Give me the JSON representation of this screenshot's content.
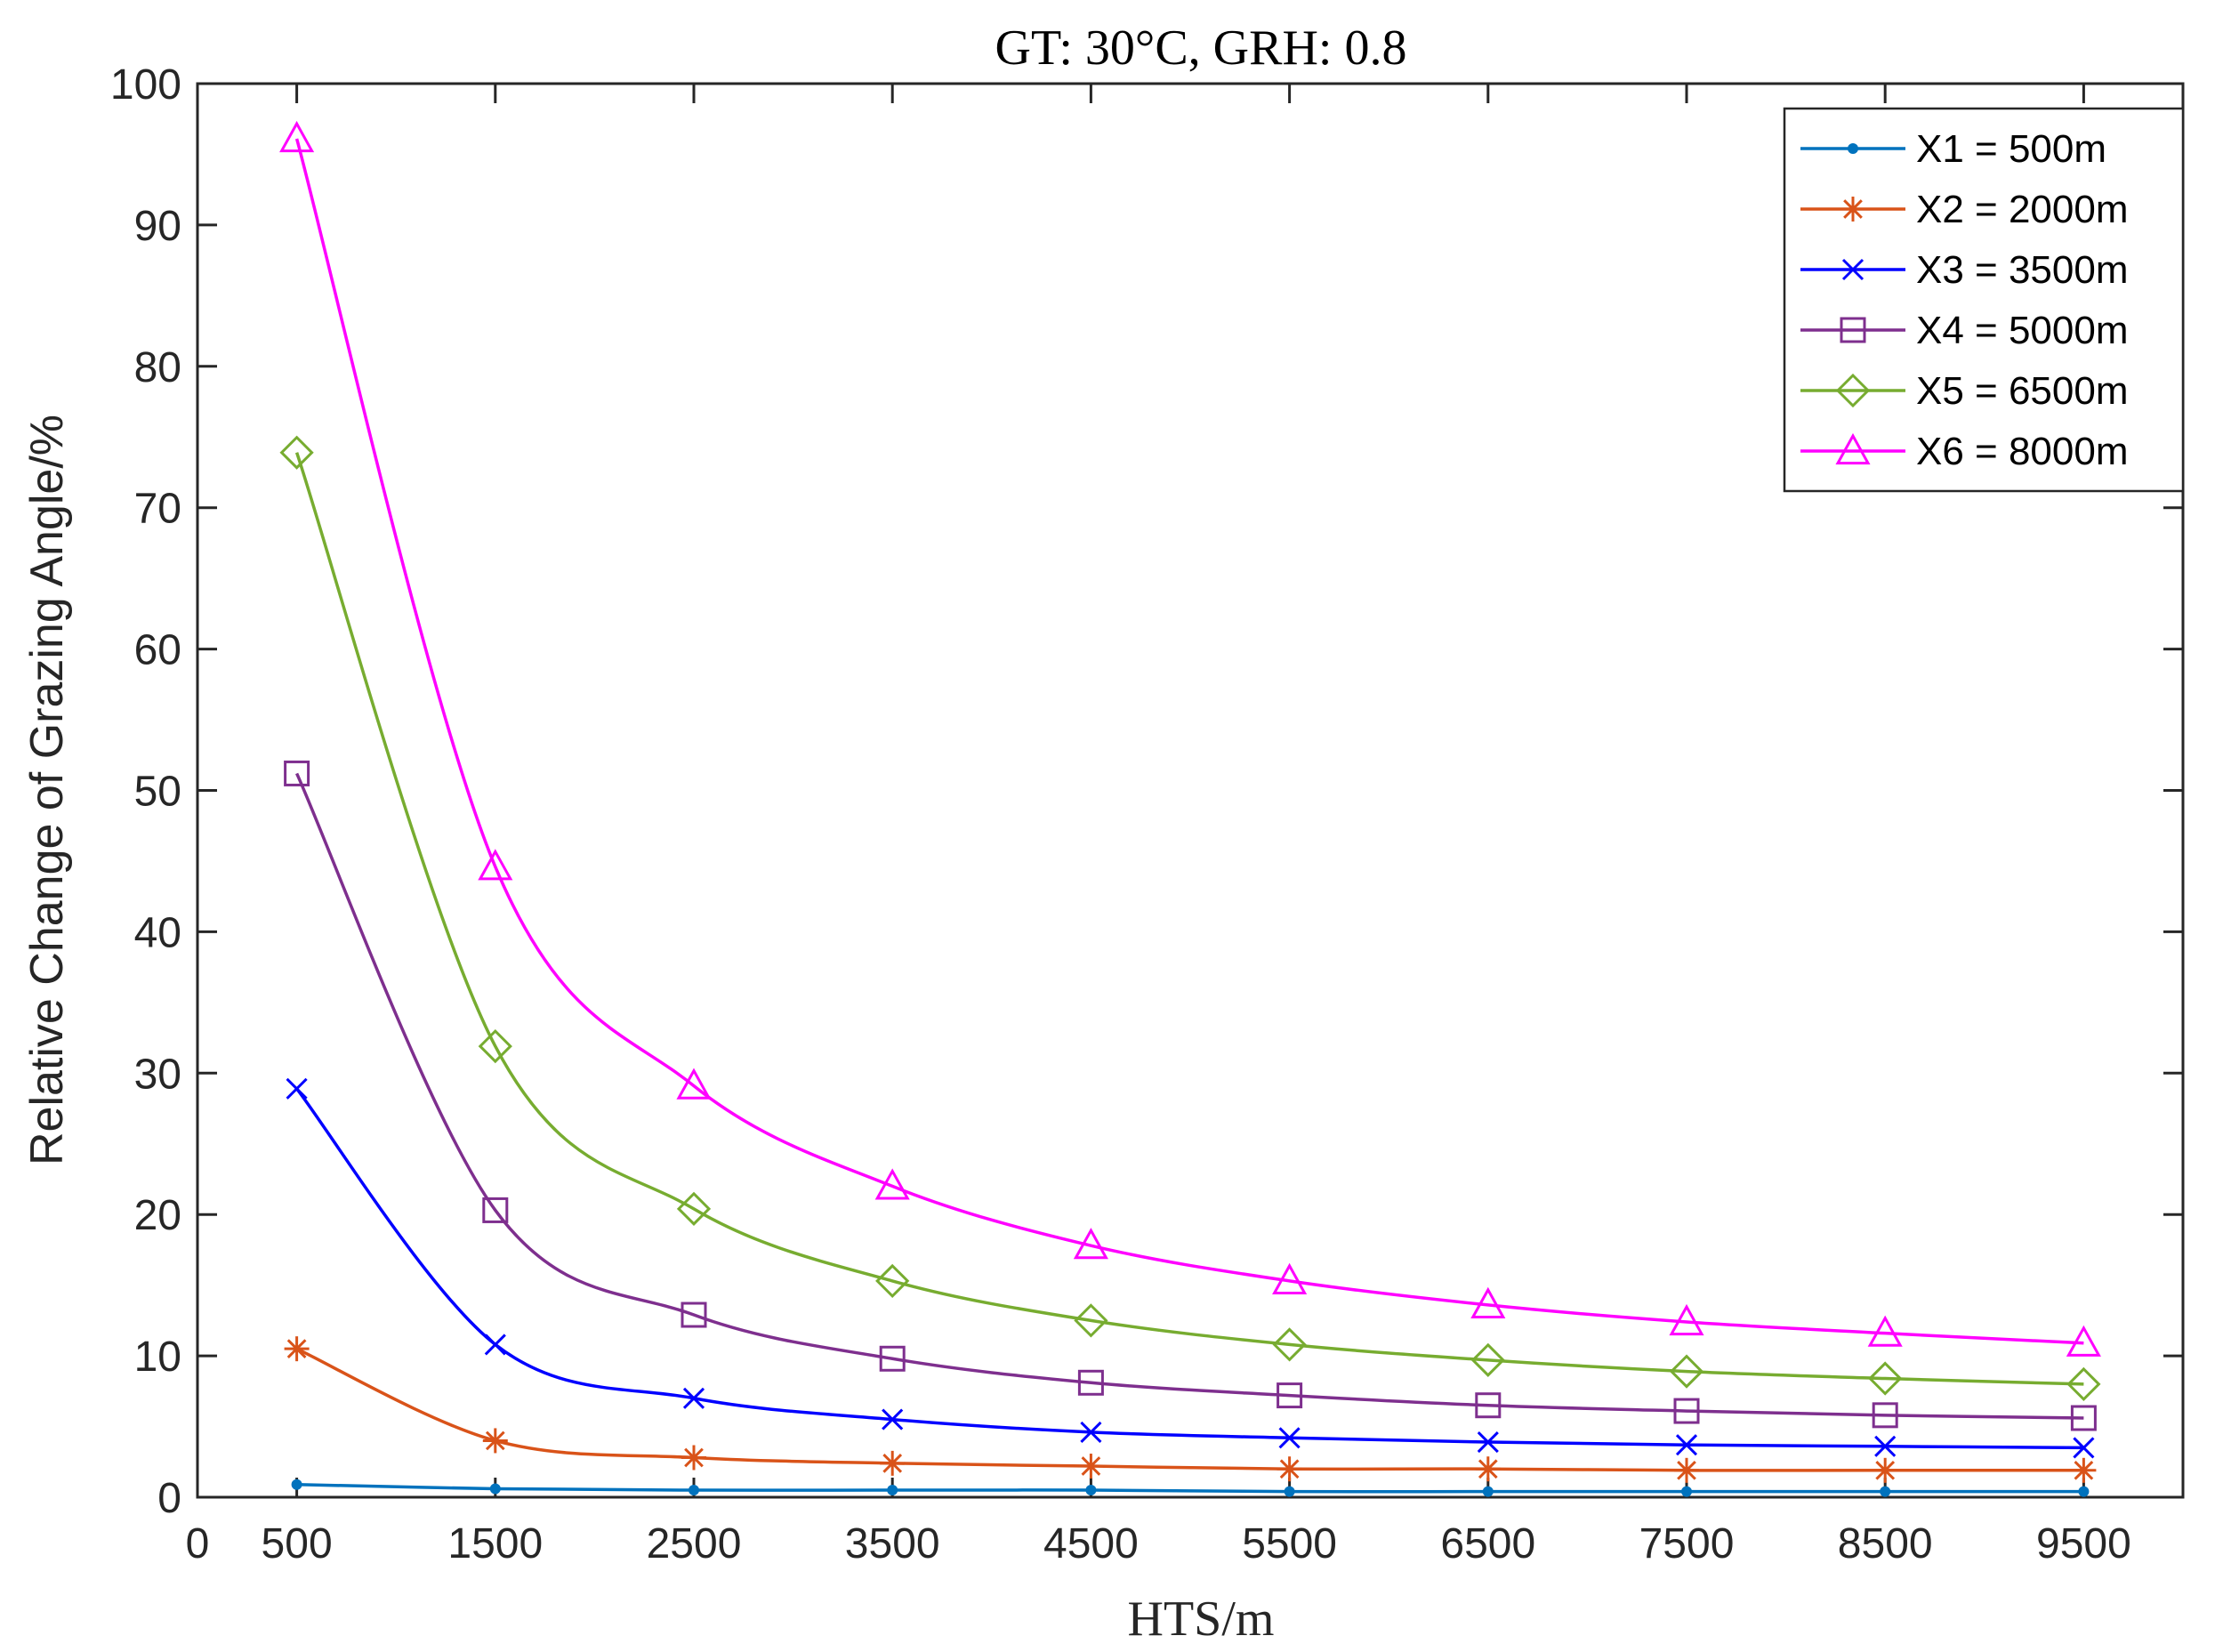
{
  "chart_data": {
    "type": "line",
    "title": "GT: 30°C, GRH: 0.8",
    "xlabel": "HTS/m",
    "ylabel": "Relative Change of Grazing Angle/%",
    "xlim": [
      0,
      10000
    ],
    "ylim": [
      0,
      100
    ],
    "x_ticks": [
      0,
      500,
      1500,
      2500,
      3500,
      4500,
      5500,
      6500,
      7500,
      8500,
      9500
    ],
    "y_ticks": [
      0,
      10,
      20,
      30,
      40,
      50,
      60,
      70,
      80,
      90,
      100
    ],
    "grid": false,
    "legend_position": "top-right",
    "x": [
      500,
      1500,
      2500,
      3500,
      4500,
      5500,
      6500,
      7500,
      8500,
      9500
    ],
    "series": [
      {
        "name": "X1 = 500m",
        "color": "#0072BD",
        "marker": "dot",
        "values": [
          0.9,
          0.6,
          0.5,
          0.5,
          0.5,
          0.4,
          0.4,
          0.4,
          0.4,
          0.4
        ]
      },
      {
        "name": "X2 = 2000m",
        "color": "#D95319",
        "marker": "asterisk",
        "values": [
          10.5,
          4.0,
          2.8,
          2.4,
          2.2,
          2.0,
          2.0,
          1.9,
          1.9,
          1.9
        ]
      },
      {
        "name": "X3 = 3500m",
        "color": "#0000FF",
        "marker": "x",
        "values": [
          28.9,
          10.8,
          7.0,
          5.5,
          4.6,
          4.2,
          3.9,
          3.7,
          3.6,
          3.5
        ]
      },
      {
        "name": "X4 = 5000m",
        "color": "#7E2F8E",
        "marker": "square",
        "values": [
          51.2,
          20.3,
          12.9,
          9.8,
          8.1,
          7.2,
          6.5,
          6.1,
          5.8,
          5.6
        ]
      },
      {
        "name": "X5 = 6500m",
        "color": "#77AC30",
        "marker": "diamond",
        "values": [
          73.9,
          31.9,
          20.4,
          15.3,
          12.5,
          10.8,
          9.7,
          8.9,
          8.4,
          8.0
        ]
      },
      {
        "name": "X6 = 8000m",
        "color": "#FF00FF",
        "marker": "triangle",
        "values": [
          96.1,
          44.6,
          29.1,
          22.0,
          17.8,
          15.3,
          13.6,
          12.4,
          11.6,
          10.9
        ]
      }
    ]
  }
}
